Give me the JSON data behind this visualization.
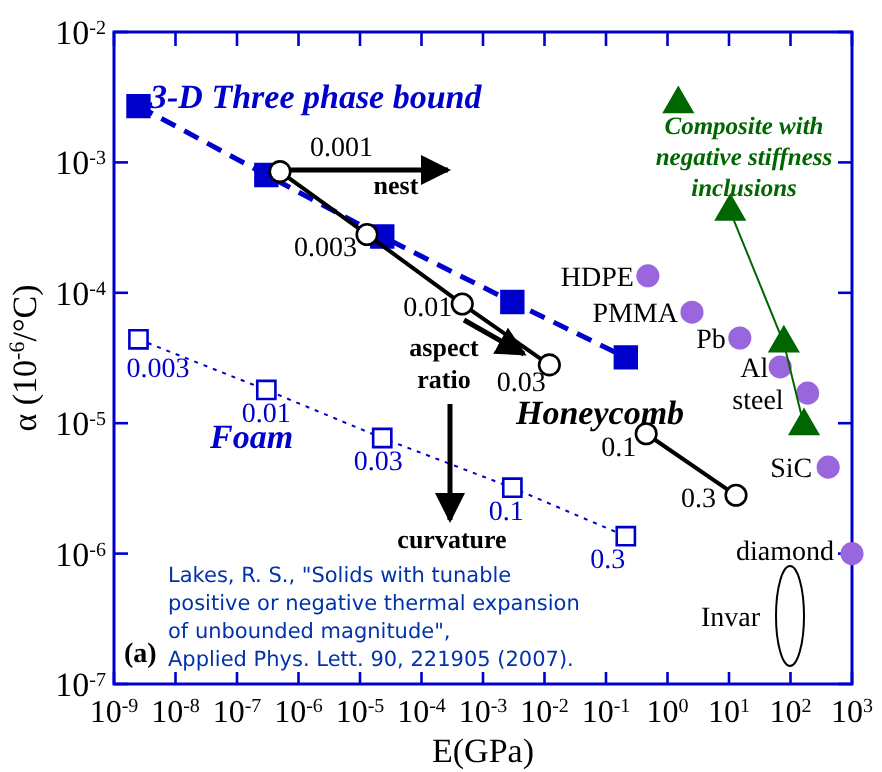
{
  "chart_data": {
    "type": "line",
    "xlabel": "E(GPa)",
    "ylabel": "α (10$^{-6}$/°C)",
    "log": "xy",
    "grid": false,
    "xlim": [
      1e-09,
      1000
    ],
    "ylim": [
      1e-07,
      0.01
    ],
    "xticks": [
      {
        "value": 1e-09,
        "label": "10$^{-9}$"
      },
      {
        "value": 1e-08,
        "label": "10$^{-8}$"
      },
      {
        "value": 1e-07,
        "label": "10$^{-7}$"
      },
      {
        "value": 1e-06,
        "label": "10$^{-6}$"
      },
      {
        "value": 1e-05,
        "label": "10$^{-5}$"
      },
      {
        "value": 0.0001,
        "label": "10$^{-4}$"
      },
      {
        "value": 0.001,
        "label": "10$^{-3}$"
      },
      {
        "value": 0.01,
        "label": "10$^{-2}$"
      },
      {
        "value": 0.1,
        "label": "10$^{-1}$"
      },
      {
        "value": 1,
        "label": "10$^{0}$"
      },
      {
        "value": 10,
        "label": "10$^{1}$"
      },
      {
        "value": 100,
        "label": "10$^{2}$"
      },
      {
        "value": 1000,
        "label": "10$^{3}$"
      }
    ],
    "yticks": [
      {
        "value": 1e-07,
        "label": "10$^{-7}$"
      },
      {
        "value": 1e-06,
        "label": "10$^{-6}$"
      },
      {
        "value": 1e-05,
        "label": "10$^{-5}$"
      },
      {
        "value": 0.0001,
        "label": "10$^{-4}$"
      },
      {
        "value": 0.001,
        "label": "10$^{-3}$"
      },
      {
        "value": 0.01,
        "label": "10$^{-2}$"
      }
    ],
    "series": [
      {
        "color": "#0000cc",
        "marker": "square",
        "line_style": "dashed",
        "x": [
          2.5e-09,
          3e-07,
          2.3e-05,
          0.003,
          0.21
        ],
        "values": [
          0.0027,
          0.0008,
          0.00027,
          8.5e-05,
          3.2e-05
        ]
      },
      {
        "color": "#0000cc",
        "marker": "square",
        "line_style": "dotted",
        "x": [
          2.5e-09,
          3e-07,
          2.3e-05,
          0.003,
          0.21
        ],
        "values": [
          4.4e-05,
          1.8e-05,
          7.7e-06,
          3.2e-06,
          1.36e-06
        ]
      },
      {
        "color": "#000000",
        "marker": "circle",
        "line_style": "solid",
        "x": [
          5e-07,
          1.3e-05,
          0.00046,
          0.012,
          0.05,
          0.45,
          13
        ],
        "values": [
          0.00085,
          0.00028,
          8.2e-05,
          2.8e-05,
          null,
          8.3e-06,
          2.8e-06
        ]
      },
      {
        "type": "scatter",
        "color": "#9966dd",
        "marker": "circle",
        "x": [
          0.48,
          2.5,
          15,
          68,
          190,
          410,
          1000
        ],
        "values": [
          0.000135,
          7.1e-05,
          4.5e-05,
          2.7e-05,
          1.7e-05,
          4.6e-06,
          1e-06
        ]
      },
      {
        "color": "#006600",
        "marker": "triangle",
        "line_style": "solid",
        "x": [
          10.5,
          78,
          166
        ],
        "values": [
          0.00042,
          4.1e-05,
          9.5e-06
        ]
      },
      {
        "type": "scatter",
        "color": "#006600",
        "marker": "triangle",
        "x": [
          1.5
        ],
        "values": [
          0.0028
        ]
      }
    ],
    "annotations": [
      "3-D Three phase bound",
      "Foam",
      "Honeycomb",
      "Composite with\nnegative stiffness\ninclusions",
      "nest",
      "aspect\nratio",
      "curvature",
      "(a)",
      "Lakes, R. S., \"Solids with tunable\npositive or negative thermal expansion\nof unbounded magnitude\",\nApplied Phys. Lett.  90, 221905 (2007).",
      {
        "text": "0.001",
        "x": 5e-07,
        "y": 0.00085
      },
      {
        "text": "0.003",
        "x": 1.3e-05,
        "y": 0.00028
      },
      {
        "text": "0.01",
        "x": 0.00046,
        "y": 8.2e-05
      },
      {
        "text": "0.03",
        "x": 0.012,
        "y": 2.8e-05
      },
      {
        "text": "0.1",
        "x": 0.45,
        "y": 8.3e-06
      },
      {
        "text": "0.3",
        "x": 13,
        "y": 2.8e-06
      },
      {
        "text": "0.003",
        "x": 2.5e-09,
        "y": 4.4e-05
      },
      {
        "text": "0.01",
        "x": 3e-07,
        "y": 1.8e-05
      },
      {
        "text": "0.03",
        "x": 2.3e-05,
        "y": 7.7e-06
      },
      {
        "text": "0.1",
        "x": 0.003,
        "y": 3.2e-06
      },
      {
        "text": "0.3",
        "x": 0.21,
        "y": 1.36e-06
      },
      {
        "text": "HDPE",
        "x": 0.48,
        "y": 0.000135
      },
      {
        "text": "PMMA",
        "x": 2.5,
        "y": 7.1e-05
      },
      {
        "text": "Pb",
        "x": 15,
        "y": 4.5e-05
      },
      {
        "text": "Al",
        "x": 68,
        "y": 2.7e-05
      },
      {
        "text": "steel",
        "x": 190,
        "y": 1.7e-05
      },
      {
        "text": "SiC",
        "x": 410,
        "y": 4.6e-06
      },
      {
        "text": "diamond",
        "x": 1000,
        "y": 1e-06
      },
      "Invar"
    ]
  }
}
